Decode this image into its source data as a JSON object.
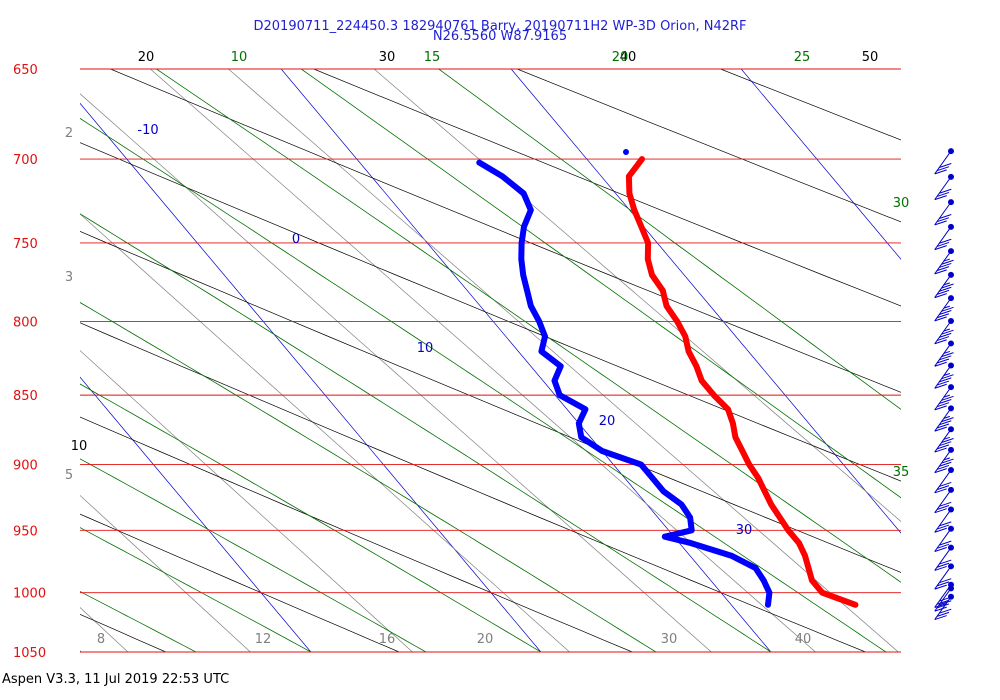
{
  "chart_data": {
    "type": "skew-t",
    "title": "D20190711_224450.3 182940761 Barry, 20190711H2 WP-3D Orion, N42RF",
    "subtitle": "N26.5560 W87.9165",
    "footer": "Aspen V3.3, 11 Jul 2019  22:53 UTC",
    "pressure_range": [
      650,
      1050
    ],
    "pressure_labels": [
      "650",
      "700",
      "750",
      "800",
      "850",
      "900",
      "950",
      "1000",
      "1050"
    ],
    "pressure_levels": [
      650,
      700,
      750,
      800,
      850,
      900,
      950,
      1000,
      1050
    ],
    "temperature_labels_top": [
      "20",
      "30",
      "40",
      "50"
    ],
    "temperature_labels_bottom": [
      "20",
      "30",
      "40"
    ],
    "temperature_label_mid": "10",
    "dry_adiabat_labels_green": [
      "10",
      "15",
      "20",
      "25",
      "30",
      "35"
    ],
    "mixing_ratio_labels": [
      "2",
      "3",
      "5",
      "8",
      "12",
      "16"
    ],
    "isotherm_labels_blue": [
      "-10",
      "0",
      "10",
      "20",
      "30"
    ],
    "colors": {
      "isobar": "#e01010",
      "pressure_label": "#e01010",
      "isotherm": "#0000c8",
      "moist_adiabat": "#007000",
      "dry_adiabat": "#000000",
      "mixing_ratio": "#808080",
      "temperature": "#ff0000",
      "dewpoint": "#0000ff",
      "title": "#1f1fd6",
      "wind": "#0000c8"
    },
    "series": [
      {
        "name": "temperature",
        "points": [
          [
            1010,
            25.4
          ],
          [
            1000,
            24.4
          ],
          [
            990,
            24.4
          ],
          [
            980,
            24.7
          ],
          [
            970,
            25.0
          ],
          [
            960,
            25.2
          ],
          [
            950,
            25.2
          ],
          [
            940,
            25.3
          ],
          [
            930,
            25.4
          ],
          [
            920,
            25.6
          ],
          [
            910,
            25.8
          ],
          [
            900,
            25.9
          ],
          [
            890,
            26.1
          ],
          [
            880,
            26.3
          ],
          [
            870,
            26.7
          ],
          [
            860,
            27.0
          ],
          [
            850,
            26.9
          ],
          [
            840,
            26.9
          ],
          [
            830,
            27.2
          ],
          [
            820,
            27.4
          ],
          [
            810,
            27.8
          ],
          [
            800,
            28.0
          ],
          [
            790,
            28.1
          ],
          [
            780,
            28.5
          ],
          [
            770,
            28.6
          ],
          [
            760,
            29.0
          ],
          [
            750,
            29.6
          ],
          [
            740,
            29.9
          ],
          [
            730,
            30.2
          ],
          [
            720,
            30.6
          ],
          [
            710,
            31.2
          ],
          [
            705,
            31.8
          ],
          [
            700,
            32.4
          ]
        ]
      },
      {
        "name": "dewpoint",
        "points": [
          [
            1010,
            21.6
          ],
          [
            1000,
            22.1
          ],
          [
            990,
            22.3
          ],
          [
            980,
            22.4
          ],
          [
            970,
            21.8
          ],
          [
            960,
            20.5
          ],
          [
            955,
            19.6
          ],
          [
            950,
            21.0
          ],
          [
            940,
            21.4
          ],
          [
            930,
            21.5
          ],
          [
            920,
            21.2
          ],
          [
            910,
            21.2
          ],
          [
            900,
            21.2
          ],
          [
            890,
            20.0
          ],
          [
            880,
            19.6
          ],
          [
            870,
            20.0
          ],
          [
            860,
            20.8
          ],
          [
            850,
            20.2
          ],
          [
            840,
            20.5
          ],
          [
            830,
            21.3
          ],
          [
            820,
            21.0
          ],
          [
            810,
            21.7
          ],
          [
            800,
            22.0
          ],
          [
            790,
            22.2
          ],
          [
            780,
            22.6
          ],
          [
            770,
            23.0
          ],
          [
            760,
            23.5
          ],
          [
            750,
            24.1
          ],
          [
            740,
            24.8
          ],
          [
            730,
            25.7
          ],
          [
            720,
            26.0
          ],
          [
            710,
            25.7
          ],
          [
            702,
            25.2
          ]
        ]
      }
    ],
    "wind_barbs": {
      "pressures": [
        700,
        715,
        730,
        745,
        760,
        775,
        790,
        805,
        820,
        835,
        850,
        865,
        880,
        895,
        910,
        925,
        940,
        955,
        970,
        985,
        1000,
        1003,
        1010
      ],
      "speeds_kt": [
        30,
        30,
        30,
        30,
        35,
        35,
        35,
        35,
        35,
        35,
        35,
        35,
        35,
        35,
        30,
        30,
        30,
        30,
        30,
        30,
        30,
        30,
        30
      ],
      "directions_deg": [
        135,
        135,
        135,
        135,
        135,
        135,
        135,
        135,
        135,
        135,
        135,
        135,
        135,
        135,
        135,
        135,
        135,
        135,
        135,
        135,
        135,
        135,
        135
      ]
    }
  }
}
